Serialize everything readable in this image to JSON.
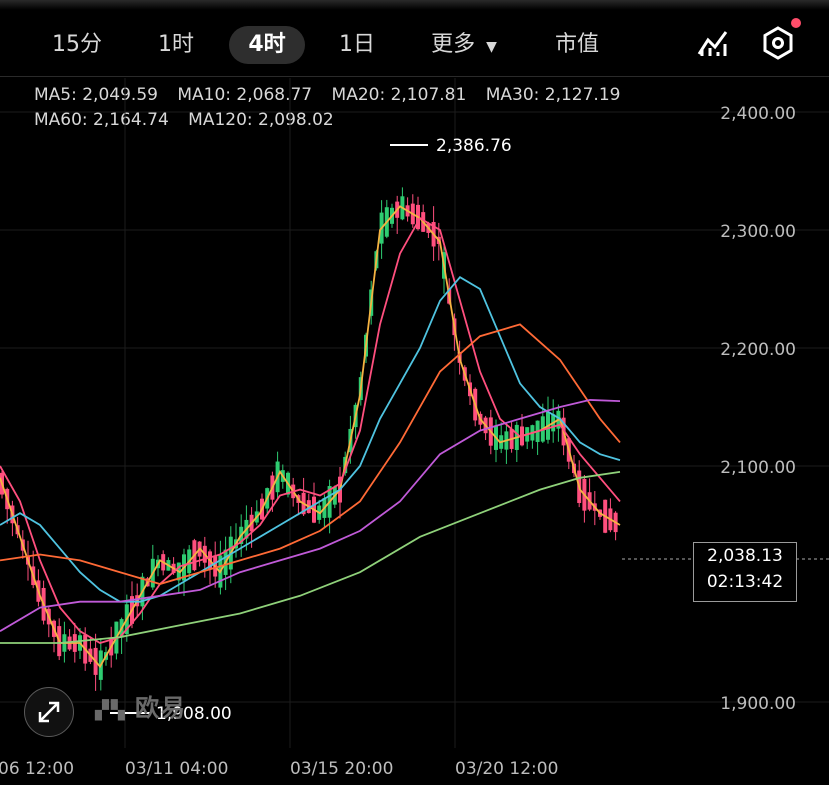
{
  "tabs": [
    {
      "label": "15分",
      "active": false
    },
    {
      "label": "1时",
      "active": false
    },
    {
      "label": "4时",
      "active": true
    },
    {
      "label": "1日",
      "active": false
    },
    {
      "label": "更多",
      "active": false,
      "dropdown": true
    },
    {
      "label": "市值",
      "active": false
    }
  ],
  "icons": {
    "indicator": "chart-indicator-icon",
    "settings": "hexagon-settings-icon"
  },
  "ma": {
    "ma5": {
      "label": "MA5: 2,049.59",
      "color": "#f5b342"
    },
    "ma10": {
      "label": "MA10: 2,068.77",
      "color": "#ff4f7e"
    },
    "ma20": {
      "label": "MA20: 2,107.81",
      "color": "#4fc3e0"
    },
    "ma30": {
      "label": "MA30: 2,127.19",
      "color": "#ff6a36"
    },
    "ma60": {
      "label": "MA60: 2,164.74",
      "color": "#c05ad8"
    },
    "ma120": {
      "label": "MA120: 2,098.02",
      "color": "#8fd17a"
    }
  },
  "price_tag": {
    "price": "2,038.13",
    "countdown": "02:13:42"
  },
  "high_label": "2,386.76",
  "low_label": "1,908.00",
  "watermark": "欧易",
  "chart_data": {
    "type": "line",
    "y_axis_labels": [
      "2,400.00",
      "2,300.00",
      "2,200.00",
      "2,100.00",
      "1,900.00"
    ],
    "y_axis_values": [
      2400,
      2300,
      2200,
      2100,
      1900
    ],
    "x_axis_labels": [
      "06 12:00",
      "03/11 04:00",
      "03/15 20:00",
      "03/20 12:00"
    ],
    "ylim": [
      1880,
      2440
    ],
    "up_color": "#2ecc71",
    "down_color": "#ff4f7e",
    "series": [
      {
        "name": "MA5",
        "color": "#f5b342",
        "points": [
          [
            0,
            2090
          ],
          [
            20,
            2040
          ],
          [
            40,
            1990
          ],
          [
            60,
            1950
          ],
          [
            80,
            1950
          ],
          [
            100,
            1930
          ],
          [
            120,
            1960
          ],
          [
            140,
            1990
          ],
          [
            160,
            2020
          ],
          [
            180,
            2010
          ],
          [
            200,
            2030
          ],
          [
            220,
            2010
          ],
          [
            240,
            2040
          ],
          [
            260,
            2060
          ],
          [
            280,
            2095
          ],
          [
            300,
            2070
          ],
          [
            320,
            2060
          ],
          [
            340,
            2080
          ],
          [
            360,
            2160
          ],
          [
            380,
            2300
          ],
          [
            400,
            2320
          ],
          [
            420,
            2310
          ],
          [
            440,
            2290
          ],
          [
            460,
            2190
          ],
          [
            480,
            2140
          ],
          [
            500,
            2120
          ],
          [
            520,
            2125
          ],
          [
            540,
            2130
          ],
          [
            560,
            2140
          ],
          [
            580,
            2080
          ],
          [
            600,
            2060
          ],
          [
            620,
            2050
          ]
        ]
      },
      {
        "name": "MA10",
        "color": "#ff4f7e",
        "points": [
          [
            0,
            2100
          ],
          [
            20,
            2070
          ],
          [
            40,
            2020
          ],
          [
            60,
            1980
          ],
          [
            80,
            1960
          ],
          [
            100,
            1950
          ],
          [
            120,
            1955
          ],
          [
            140,
            1975
          ],
          [
            160,
            2000
          ],
          [
            180,
            2015
          ],
          [
            200,
            2020
          ],
          [
            220,
            2025
          ],
          [
            240,
            2035
          ],
          [
            260,
            2050
          ],
          [
            280,
            2075
          ],
          [
            300,
            2080
          ],
          [
            320,
            2075
          ],
          [
            340,
            2085
          ],
          [
            360,
            2130
          ],
          [
            380,
            2220
          ],
          [
            400,
            2280
          ],
          [
            420,
            2310
          ],
          [
            440,
            2300
          ],
          [
            460,
            2240
          ],
          [
            480,
            2180
          ],
          [
            500,
            2140
          ],
          [
            520,
            2125
          ],
          [
            540,
            2130
          ],
          [
            560,
            2135
          ],
          [
            580,
            2110
          ],
          [
            600,
            2090
          ],
          [
            620,
            2070
          ]
        ]
      },
      {
        "name": "MA20",
        "color": "#4fc3e0",
        "points": [
          [
            0,
            2050
          ],
          [
            20,
            2060
          ],
          [
            40,
            2050
          ],
          [
            60,
            2030
          ],
          [
            80,
            2010
          ],
          [
            100,
            1995
          ],
          [
            120,
            1985
          ],
          [
            140,
            1985
          ],
          [
            160,
            1990
          ],
          [
            180,
            2000
          ],
          [
            200,
            2010
          ],
          [
            220,
            2020
          ],
          [
            240,
            2030
          ],
          [
            260,
            2040
          ],
          [
            280,
            2050
          ],
          [
            300,
            2060
          ],
          [
            320,
            2070
          ],
          [
            340,
            2080
          ],
          [
            360,
            2100
          ],
          [
            380,
            2140
          ],
          [
            400,
            2170
          ],
          [
            420,
            2200
          ],
          [
            440,
            2240
          ],
          [
            460,
            2260
          ],
          [
            480,
            2250
          ],
          [
            500,
            2210
          ],
          [
            520,
            2170
          ],
          [
            540,
            2150
          ],
          [
            560,
            2140
          ],
          [
            580,
            2120
          ],
          [
            600,
            2110
          ],
          [
            620,
            2105
          ]
        ]
      },
      {
        "name": "MA30",
        "color": "#ff6a36",
        "points": [
          [
            0,
            2020
          ],
          [
            40,
            2025
          ],
          [
            80,
            2020
          ],
          [
            120,
            2010
          ],
          [
            160,
            2000
          ],
          [
            200,
            2010
          ],
          [
            240,
            2020
          ],
          [
            280,
            2030
          ],
          [
            320,
            2045
          ],
          [
            360,
            2070
          ],
          [
            400,
            2120
          ],
          [
            440,
            2180
          ],
          [
            480,
            2210
          ],
          [
            520,
            2220
          ],
          [
            560,
            2190
          ],
          [
            600,
            2140
          ],
          [
            620,
            2120
          ]
        ]
      },
      {
        "name": "MA60",
        "color": "#c05ad8",
        "points": [
          [
            0,
            1960
          ],
          [
            40,
            1980
          ],
          [
            80,
            1985
          ],
          [
            120,
            1985
          ],
          [
            160,
            1990
          ],
          [
            200,
            1995
          ],
          [
            240,
            2010
          ],
          [
            280,
            2020
          ],
          [
            320,
            2030
          ],
          [
            360,
            2045
          ],
          [
            400,
            2070
          ],
          [
            440,
            2110
          ],
          [
            480,
            2130
          ],
          [
            520,
            2140
          ],
          [
            560,
            2150
          ],
          [
            590,
            2156
          ],
          [
            620,
            2155
          ]
        ]
      },
      {
        "name": "MA120",
        "color": "#8fd17a",
        "points": [
          [
            0,
            1950
          ],
          [
            60,
            1950
          ],
          [
            120,
            1955
          ],
          [
            180,
            1965
          ],
          [
            240,
            1975
          ],
          [
            300,
            1990
          ],
          [
            360,
            2010
          ],
          [
            420,
            2040
          ],
          [
            480,
            2060
          ],
          [
            540,
            2080
          ],
          [
            580,
            2090
          ],
          [
            620,
            2095
          ]
        ]
      }
    ],
    "grid": true
  }
}
